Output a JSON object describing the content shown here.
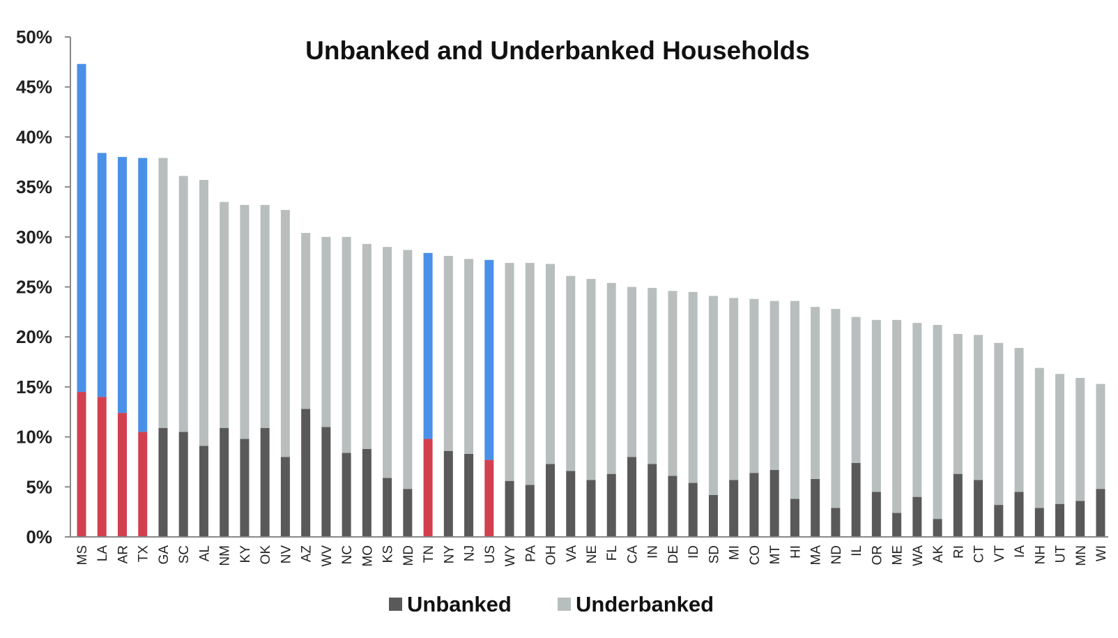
{
  "chart_data": {
    "type": "bar",
    "stacked": true,
    "title": "Unbanked and Underbanked Households",
    "xlabel": "",
    "ylabel": "",
    "ylim": [
      0,
      50
    ],
    "y_ticks": [
      "0%",
      "5%",
      "10%",
      "15%",
      "20%",
      "25%",
      "30%",
      "35%",
      "40%",
      "45%",
      "50%"
    ],
    "grid": false,
    "legend_position": "bottom",
    "categories": [
      "MS",
      "LA",
      "AR",
      "TX",
      "GA",
      "SC",
      "AL",
      "NM",
      "KY",
      "OK",
      "NV",
      "AZ",
      "WV",
      "NC",
      "MO",
      "KS",
      "MD",
      "TN",
      "NY",
      "NJ",
      "US",
      "WY",
      "PA",
      "OH",
      "VA",
      "NE",
      "FL",
      "CA",
      "IN",
      "DE",
      "ID",
      "SD",
      "MI",
      "CO",
      "MT",
      "HI",
      "MA",
      "ND",
      "IL",
      "OR",
      "ME",
      "WA",
      "AK",
      "RI",
      "CT",
      "VT",
      "IA",
      "NH",
      "UT",
      "MN",
      "WI"
    ],
    "series": [
      {
        "name": "Unbanked",
        "color": "#595959",
        "values": [
          14.5,
          14.0,
          12.4,
          10.5,
          10.9,
          10.5,
          9.1,
          10.9,
          9.8,
          10.9,
          8.0,
          12.8,
          11.0,
          8.4,
          8.8,
          5.9,
          4.8,
          9.8,
          8.6,
          8.3,
          7.7,
          5.6,
          5.2,
          7.3,
          6.6,
          5.7,
          6.3,
          8.0,
          7.3,
          6.1,
          5.4,
          4.2,
          5.7,
          6.4,
          6.7,
          3.8,
          5.8,
          2.9,
          7.4,
          4.5,
          2.4,
          4.0,
          1.8,
          6.3,
          5.7,
          3.2,
          4.5,
          2.9,
          3.3,
          3.6,
          4.8
        ]
      },
      {
        "name": "Underbanked",
        "color": "#b8bebe",
        "values": [
          32.8,
          24.4,
          25.6,
          27.4,
          27.0,
          25.6,
          26.6,
          22.6,
          23.4,
          22.3,
          24.7,
          17.6,
          19.0,
          21.6,
          20.5,
          23.1,
          23.9,
          18.6,
          19.5,
          19.5,
          20.0,
          21.8,
          22.2,
          20.0,
          19.5,
          20.1,
          19.1,
          17.0,
          17.6,
          18.5,
          19.1,
          19.9,
          18.2,
          17.4,
          16.9,
          19.8,
          17.2,
          19.9,
          14.6,
          17.2,
          19.3,
          17.4,
          19.4,
          14.0,
          14.5,
          16.2,
          14.4,
          14.0,
          13.0,
          12.3,
          10.5
        ]
      }
    ],
    "highlighted": {
      "categories": [
        "MS",
        "LA",
        "AR",
        "TX",
        "TN",
        "US"
      ],
      "unbanked_color": "#d2404f",
      "underbanked_color": "#4a90e8"
    }
  }
}
